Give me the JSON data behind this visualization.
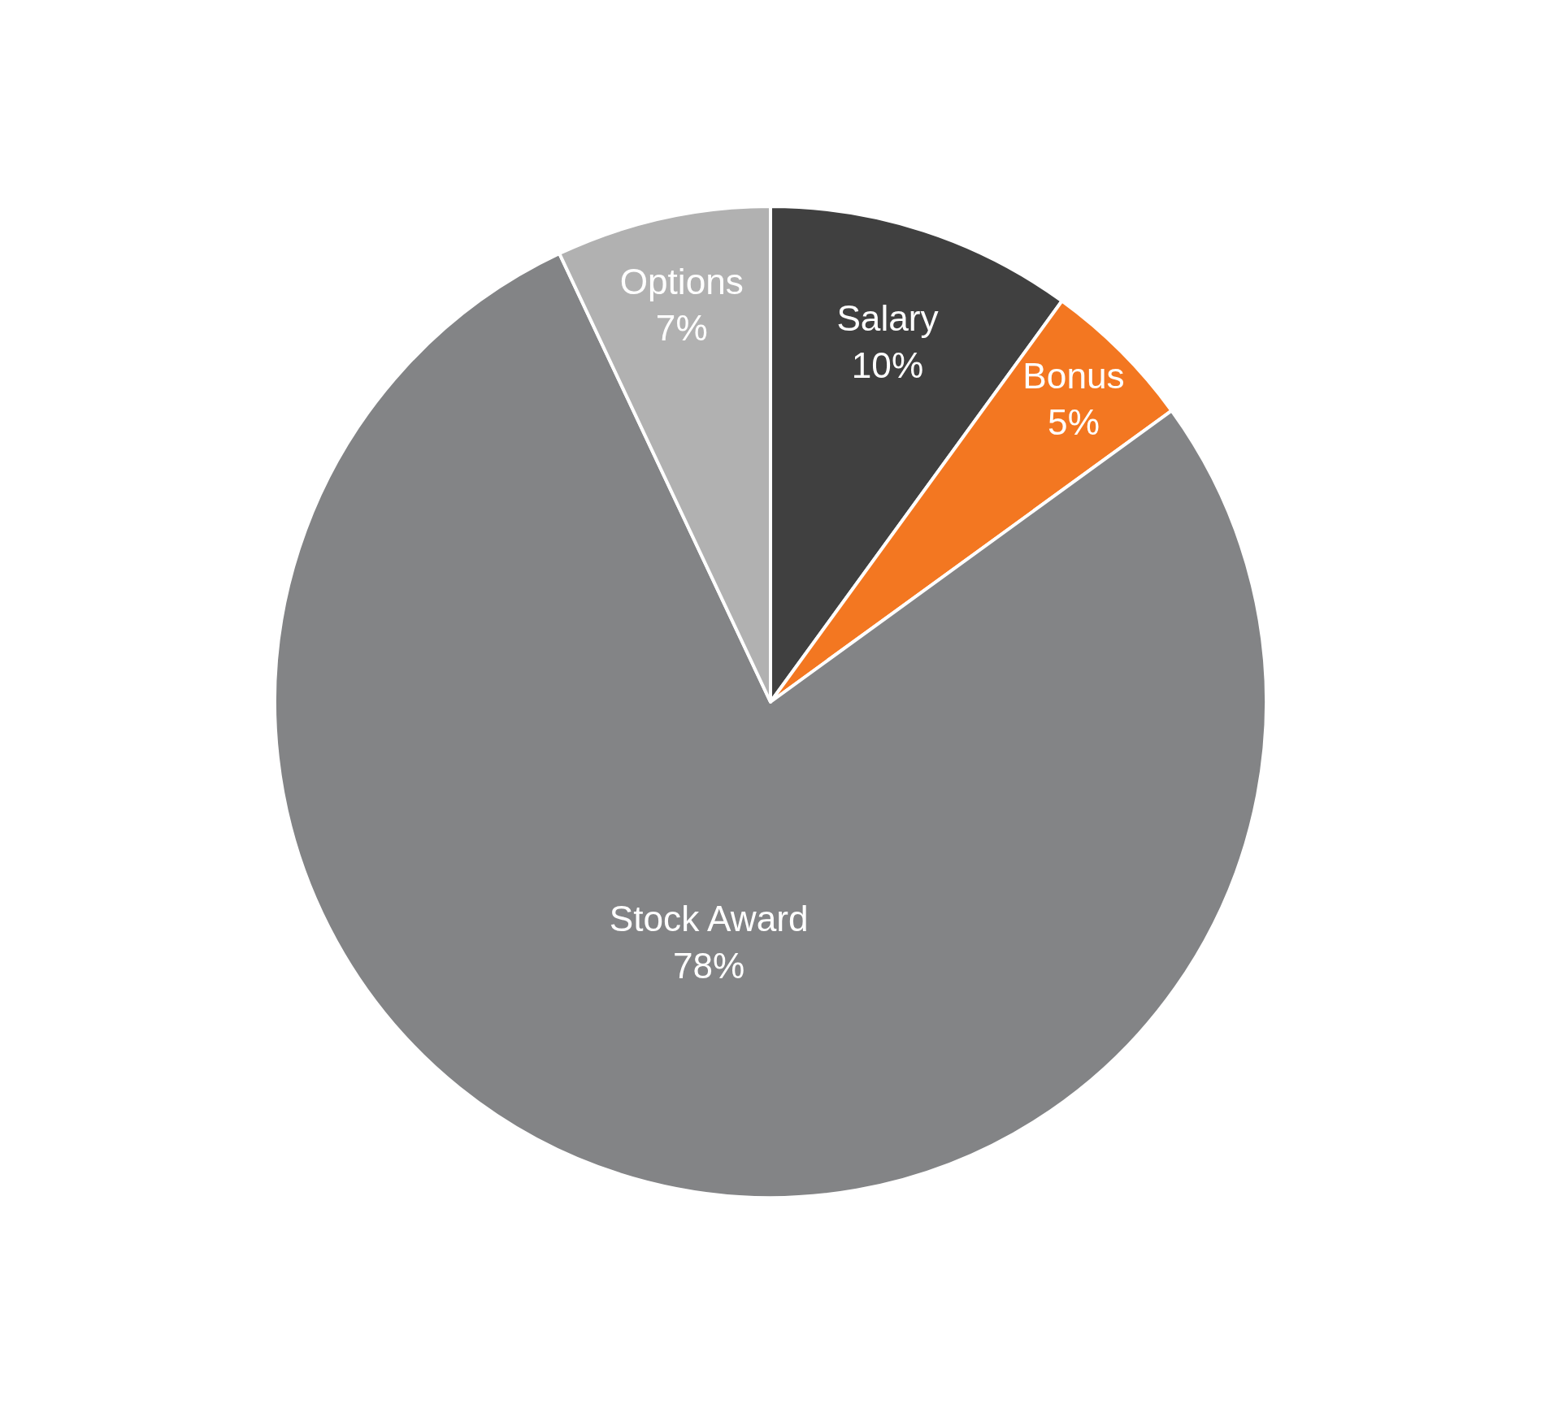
{
  "chart_data": {
    "type": "pie",
    "categories": [
      "Salary",
      "Bonus",
      "Stock Award",
      "Options"
    ],
    "values": [
      10,
      5,
      78,
      7
    ],
    "value_labels": [
      "10%",
      "5%",
      "78%",
      "7%"
    ],
    "colors": [
      "#404040",
      "#f37721",
      "#838486",
      "#b1b1b1"
    ],
    "legend": false
  }
}
